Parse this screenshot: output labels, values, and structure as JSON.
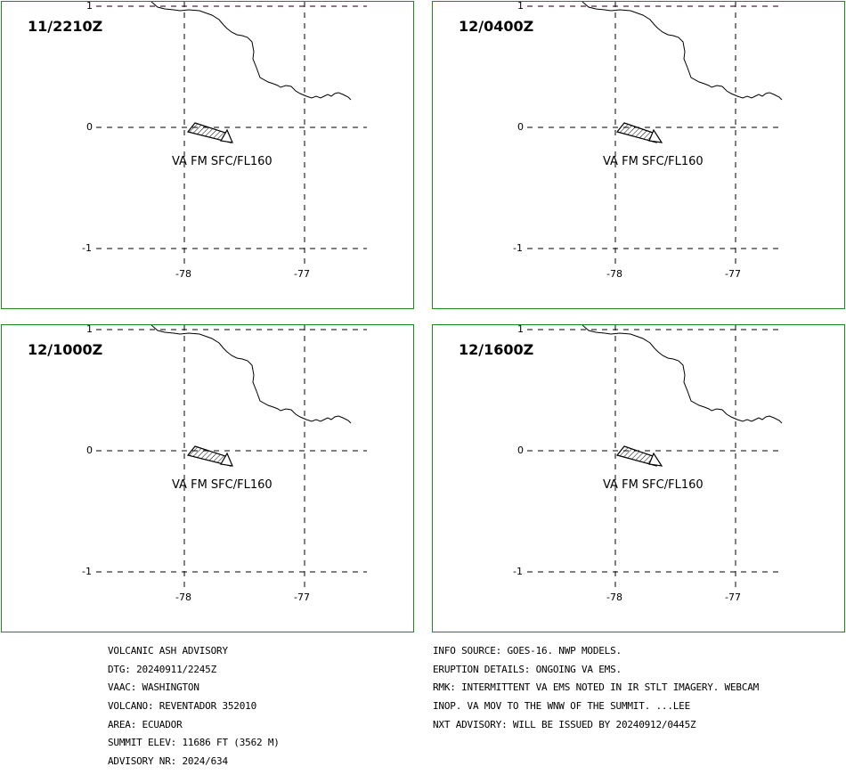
{
  "panels": [
    {
      "time": "11/2210Z",
      "va_label": "VA FM SFC/FL160"
    },
    {
      "time": "12/0400Z",
      "va_label": "VA FM SFC/FL160"
    },
    {
      "time": "12/1000Z",
      "va_label": "VA FM SFC/FL160"
    },
    {
      "time": "12/1600Z",
      "va_label": "VA FM SFC/FL160"
    }
  ],
  "axes": {
    "lat_labels": [
      "1",
      "0",
      "-1"
    ],
    "lon_labels": [
      "-78",
      "-77"
    ]
  },
  "advisory_left": {
    "title": "VOLCANIC ASH ADVISORY",
    "dtg": "DTG: 20240911/2245Z",
    "vaac": "VAAC: WASHINGTON",
    "volcano": "VOLCANO: REVENTADOR 352010",
    "area": "AREA: ECUADOR",
    "summit": "SUMMIT ELEV: 11686 FT (3562 M)",
    "advisory_nr": "ADVISORY NR: 2024/634"
  },
  "advisory_right": {
    "info_source": "INFO SOURCE: GOES-16. NWP MODELS.",
    "eruption": "ERUPTION DETAILS: ONGOING VA EMS.",
    "rmk": "RMK: INTERMITTENT VA EMS NOTED IN IR STLT IMAGERY. WEBCAM",
    "inop": "INOP. VA MOV TO THE WNW OF THE SUMMIT. ...LEE",
    "nxt": "NXT ADVISORY: WILL BE ISSUED BY 20240912/0445Z"
  }
}
